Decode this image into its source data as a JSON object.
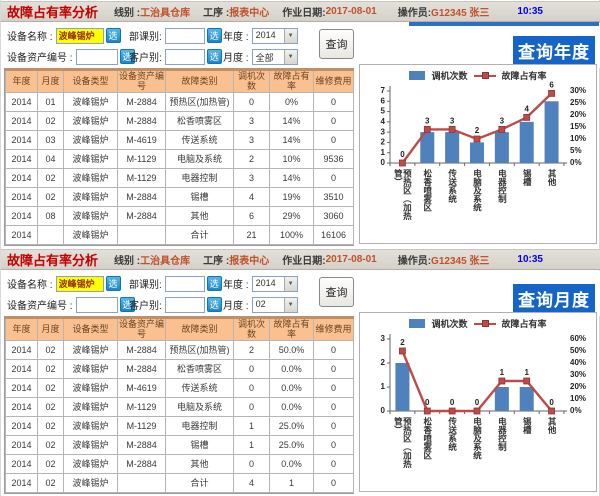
{
  "panels": [
    {
      "header": {
        "title": "故障占有率分析",
        "line_label": "线别 :",
        "line_value": "工治具仓库",
        "station_label": "工序 :",
        "station_value": "报表中心",
        "date_label": "作业日期:",
        "date_value": "2017-08-01",
        "operator_label": "操作员:",
        "operator_value": "G12345 张三",
        "time": "10:35"
      },
      "form": {
        "device_name_label": "设备名称 :",
        "device_name_value": "波峰锡炉",
        "asset_no_label": "设备资产编号 :",
        "asset_no_value": "",
        "dept_label": "部课别:",
        "dept_value": "",
        "customer_label": "客户别:",
        "customer_value": "",
        "year_label": "年度 :",
        "year_value": "2014",
        "month_label": "月度 :",
        "month_value": "全部",
        "pick_button": "选",
        "query_button": "查询"
      },
      "badge": "查询年度",
      "table": {
        "headers": [
          "年度",
          "月度",
          "设备类型",
          "设备资产编号",
          "故障类别",
          "调机次数",
          "故障占有率",
          "维修费用"
        ],
        "rows": [
          [
            "2014",
            "01",
            "波峰锡炉",
            "M-2884",
            "预热区(加热管)",
            "0",
            "0%",
            "0"
          ],
          [
            "2014",
            "02",
            "波峰锡炉",
            "M-2884",
            "松香喷雾区",
            "3",
            "14%",
            "0"
          ],
          [
            "2014",
            "03",
            "波峰锡炉",
            "M-4619",
            "传送系统",
            "3",
            "14%",
            "0"
          ],
          [
            "2014",
            "04",
            "波峰锡炉",
            "M-1129",
            "电脑及系统",
            "2",
            "10%",
            "9536"
          ],
          [
            "2014",
            "02",
            "波峰锡炉",
            "M-1129",
            "电器控制",
            "3",
            "14%",
            "0"
          ],
          [
            "2014",
            "02",
            "波峰锡炉",
            "M-2884",
            "锡槽",
            "4",
            "19%",
            "3510"
          ],
          [
            "2014",
            "08",
            "波峰锡炉",
            "M-2884",
            "其他",
            "6",
            "29%",
            "3060"
          ],
          [
            "2014",
            "",
            "波峰锡炉",
            "",
            "合计",
            "21",
            "100%",
            "16106"
          ]
        ]
      },
      "chart_data": {
        "type": "bar",
        "subtype": "bar+line-dual-axis",
        "categories": [
          "预热区（加热管）",
          "松香喷雾区",
          "传送系统",
          "电脑及系统",
          "电器控制",
          "锡槽",
          "其他"
        ],
        "series": [
          {
            "name": "调机次数",
            "type": "bar",
            "axis": "left",
            "color": "#4F81BD",
            "values": [
              0,
              3,
              3,
              2,
              3,
              4,
              6
            ]
          },
          {
            "name": "故障占有率",
            "type": "line",
            "axis": "right",
            "color": "#BE4B48",
            "values_percent": [
              0,
              14,
              14,
              10,
              14,
              19,
              29
            ]
          }
        ],
        "point_labels": [
          "0",
          "3",
          "3",
          "2",
          "3",
          "4",
          "6"
        ],
        "left_axis": {
          "min": 0,
          "max": 7,
          "step": 1
        },
        "right_axis": {
          "min": 0,
          "max": 30,
          "step": 5,
          "suffix": "%"
        },
        "legend_position": "top",
        "grid": false
      }
    },
    {
      "header": {
        "title": "故障占有率分析",
        "line_label": "线别 :",
        "line_value": "工治具仓库",
        "station_label": "工序 :",
        "station_value": "报表中心",
        "date_label": "作业日期:",
        "date_value": "2017-08-01",
        "operator_label": "操作员:",
        "operator_value": "G12345 张三",
        "time": "10:35"
      },
      "form": {
        "device_name_label": "设备名称 :",
        "device_name_value": "波峰锡炉",
        "asset_no_label": "设备资产编号 :",
        "asset_no_value": "",
        "dept_label": "部课别:",
        "dept_value": "",
        "customer_label": "客户别:",
        "customer_value": "",
        "year_label": "年度 :",
        "year_value": "2014",
        "month_label": "月度 :",
        "month_value": "02",
        "pick_button": "选",
        "query_button": "查询"
      },
      "badge": "查询月度",
      "table": {
        "headers": [
          "年度",
          "月度",
          "设备类型",
          "设备资产编号",
          "故障类别",
          "调机次数",
          "故障占有率",
          "维修费用"
        ],
        "rows": [
          [
            "2014",
            "02",
            "波峰锡炉",
            "M-2884",
            "预热区(加热管)",
            "2",
            "50.0%",
            "0"
          ],
          [
            "2014",
            "02",
            "波峰锡炉",
            "M-2884",
            "松香喷雾区",
            "0",
            "0.0%",
            "0"
          ],
          [
            "2014",
            "02",
            "波峰锡炉",
            "M-4619",
            "传送系统",
            "0",
            "0.0%",
            "0"
          ],
          [
            "2014",
            "02",
            "波峰锡炉",
            "M-1129",
            "电脑及系统",
            "0",
            "0.0%",
            "0"
          ],
          [
            "2014",
            "02",
            "波峰锡炉",
            "M-1129",
            "电器控制",
            "1",
            "25.0%",
            "0"
          ],
          [
            "2014",
            "02",
            "波峰锡炉",
            "M-2884",
            "锡槽",
            "1",
            "25.0%",
            "0"
          ],
          [
            "2014",
            "02",
            "波峰锡炉",
            "M-2884",
            "其他",
            "0",
            "0.0%",
            "0"
          ],
          [
            "2014",
            "02",
            "波峰锡炉",
            "",
            "合计",
            "4",
            "1",
            "0"
          ]
        ]
      },
      "chart_data": {
        "type": "bar",
        "subtype": "bar+line-dual-axis",
        "categories": [
          "预热区（加热管）",
          "松香喷雾区",
          "传送系统",
          "电脑及系统",
          "电器控制",
          "锡槽",
          "其他"
        ],
        "series": [
          {
            "name": "调机次数",
            "type": "bar",
            "axis": "left",
            "color": "#4F81BD",
            "values": [
              2,
              0,
              0,
              0,
              1,
              1,
              0
            ]
          },
          {
            "name": "故障占有率",
            "type": "line",
            "axis": "right",
            "color": "#BE4B48",
            "values_percent": [
              50,
              0,
              0,
              0,
              25,
              25,
              0
            ]
          }
        ],
        "point_labels": [
          "2",
          "0",
          "0",
          "0",
          "1",
          "1",
          "0"
        ],
        "left_axis": {
          "min": 0,
          "max": 3,
          "step": 1
        },
        "right_axis": {
          "min": 0,
          "max": 60,
          "step": 10,
          "suffix": "%"
        },
        "legend_position": "top",
        "grid": false
      }
    }
  ]
}
